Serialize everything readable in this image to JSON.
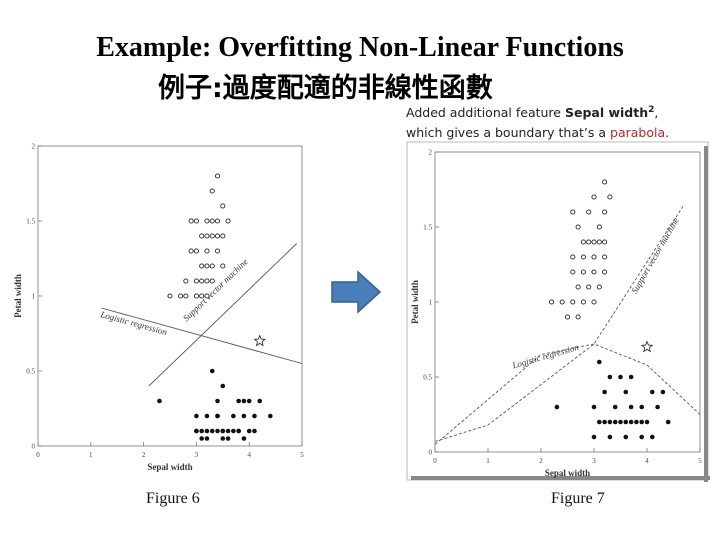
{
  "title": "Example: Overfitting Non-Linear Functions",
  "subtitle": "例子:過度配適的非線性函數",
  "annotation": {
    "line1_a": "Added additional feature ",
    "line1_b": "Sepal width",
    "line1_sup": "2",
    "line1_c": ",",
    "line2_a": "which gives a boundary that’s a ",
    "line2_b": "parabola",
    "line2_c": "."
  },
  "arrow_color": "#4a7ebb",
  "captions": {
    "left": "Figure 6",
    "right": "Figure 7"
  },
  "chart_data": [
    {
      "type": "scatter",
      "title": "",
      "xlabel": "Sepal width",
      "ylabel": "Petal width",
      "xlim": [
        0,
        5
      ],
      "ylim": [
        0,
        2
      ],
      "xticks": [
        "0",
        "1",
        "2",
        "3",
        "4",
        "5"
      ],
      "yticks": [
        "0",
        "0.5",
        "1",
        "1.5",
        "2"
      ],
      "series": [
        {
          "marker": "open-circle",
          "points": [
            [
              3.4,
              1.8
            ],
            [
              3.3,
              1.7
            ],
            [
              3.5,
              1.6
            ],
            [
              2.9,
              1.5
            ],
            [
              3.4,
              1.5
            ],
            [
              3.6,
              1.5
            ],
            [
              3.0,
              1.5
            ],
            [
              3.2,
              1.5
            ],
            [
              3.3,
              1.5
            ],
            [
              3.1,
              1.4
            ],
            [
              3.2,
              1.4
            ],
            [
              3.3,
              1.4
            ],
            [
              3.4,
              1.4
            ],
            [
              3.5,
              1.4
            ],
            [
              3.0,
              1.3
            ],
            [
              3.2,
              1.3
            ],
            [
              3.4,
              1.3
            ],
            [
              2.9,
              1.3
            ],
            [
              3.1,
              1.2
            ],
            [
              3.2,
              1.2
            ],
            [
              3.3,
              1.2
            ],
            [
              3.5,
              1.2
            ],
            [
              2.8,
              1.1
            ],
            [
              3.0,
              1.1
            ],
            [
              3.1,
              1.1
            ],
            [
              3.2,
              1.1
            ],
            [
              3.3,
              1.1
            ],
            [
              3.0,
              1.0
            ],
            [
              3.2,
              1.0
            ],
            [
              3.1,
              1.0
            ],
            [
              2.5,
              1.0
            ],
            [
              2.7,
              1.0
            ],
            [
              2.8,
              1.0
            ]
          ]
        },
        {
          "marker": "filled-circle",
          "points": [
            [
              3.3,
              0.5
            ],
            [
              3.5,
              0.4
            ],
            [
              3.4,
              0.3
            ],
            [
              3.8,
              0.3
            ],
            [
              3.9,
              0.3
            ],
            [
              4.0,
              0.3
            ],
            [
              4.2,
              0.3
            ],
            [
              2.3,
              0.3
            ],
            [
              3.0,
              0.2
            ],
            [
              3.2,
              0.2
            ],
            [
              3.4,
              0.2
            ],
            [
              3.7,
              0.2
            ],
            [
              4.1,
              0.2
            ],
            [
              4.4,
              0.2
            ],
            [
              3.9,
              0.2
            ],
            [
              3.4,
              0.2
            ],
            [
              3.2,
              0.1
            ],
            [
              3.1,
              0.1
            ],
            [
              3.0,
              0.1
            ],
            [
              3.3,
              0.1
            ],
            [
              3.4,
              0.1
            ],
            [
              3.5,
              0.1
            ],
            [
              3.6,
              0.1
            ],
            [
              3.7,
              0.1
            ],
            [
              3.8,
              0.1
            ],
            [
              4.0,
              0.1
            ],
            [
              3.5,
              0.1
            ],
            [
              3.8,
              0.1
            ],
            [
              3.0,
              0.1
            ],
            [
              4.1,
              0.1
            ],
            [
              3.1,
              0.05
            ],
            [
              3.2,
              0.05
            ],
            [
              3.9,
              0.05
            ],
            [
              3.6,
              0.05
            ],
            [
              3.5,
              0.05
            ]
          ]
        },
        {
          "marker": "star",
          "points": [
            [
              4.2,
              0.7
            ]
          ]
        }
      ],
      "lines": [
        {
          "name": "Support vector machine",
          "style": "solid",
          "points": [
            [
              2.1,
              0.4
            ],
            [
              4.9,
              1.35
            ]
          ]
        },
        {
          "name": "Logistic regression",
          "style": "solid",
          "points": [
            [
              1.2,
              0.92
            ],
            [
              5.0,
              0.55
            ]
          ]
        }
      ]
    },
    {
      "type": "scatter",
      "title": "",
      "xlabel": "Sepal width",
      "ylabel": "Petal width",
      "xlim": [
        0,
        5
      ],
      "ylim": [
        0,
        2
      ],
      "xticks": [
        "0",
        "1",
        "2",
        "3",
        "4",
        "5"
      ],
      "yticks": [
        "0",
        "0.5",
        "1",
        "1.5",
        "2"
      ],
      "series": [
        {
          "marker": "open-circle",
          "points": [
            [
              3.2,
              1.8
            ],
            [
              3.0,
              1.7
            ],
            [
              3.3,
              1.7
            ],
            [
              2.6,
              1.6
            ],
            [
              2.9,
              1.6
            ],
            [
              3.2,
              1.6
            ],
            [
              2.7,
              1.5
            ],
            [
              3.1,
              1.5
            ],
            [
              2.8,
              1.4
            ],
            [
              2.9,
              1.4
            ],
            [
              3.0,
              1.4
            ],
            [
              3.1,
              1.4
            ],
            [
              3.2,
              1.4
            ],
            [
              2.6,
              1.3
            ],
            [
              2.8,
              1.3
            ],
            [
              3.0,
              1.3
            ],
            [
              3.2,
              1.3
            ],
            [
              2.6,
              1.2
            ],
            [
              2.8,
              1.2
            ],
            [
              3.0,
              1.2
            ],
            [
              3.2,
              1.2
            ],
            [
              2.7,
              1.1
            ],
            [
              2.9,
              1.1
            ],
            [
              3.1,
              1.1
            ],
            [
              2.4,
              1.0
            ],
            [
              2.6,
              1.0
            ],
            [
              2.8,
              1.0
            ],
            [
              3.0,
              1.0
            ],
            [
              2.2,
              1.0
            ],
            [
              2.5,
              0.9
            ],
            [
              2.7,
              0.9
            ]
          ]
        },
        {
          "marker": "filled-circle",
          "points": [
            [
              3.1,
              0.6
            ],
            [
              3.3,
              0.5
            ],
            [
              3.5,
              0.5
            ],
            [
              3.7,
              0.5
            ],
            [
              3.2,
              0.4
            ],
            [
              3.6,
              0.4
            ],
            [
              4.1,
              0.4
            ],
            [
              4.3,
              0.4
            ],
            [
              2.3,
              0.3
            ],
            [
              3.0,
              0.3
            ],
            [
              3.4,
              0.3
            ],
            [
              3.7,
              0.3
            ],
            [
              3.9,
              0.3
            ],
            [
              4.2,
              0.3
            ],
            [
              3.1,
              0.2
            ],
            [
              3.2,
              0.2
            ],
            [
              3.3,
              0.2
            ],
            [
              3.4,
              0.2
            ],
            [
              3.5,
              0.2
            ],
            [
              3.6,
              0.2
            ],
            [
              3.7,
              0.2
            ],
            [
              3.8,
              0.2
            ],
            [
              3.9,
              0.2
            ],
            [
              4.0,
              0.2
            ],
            [
              4.4,
              0.2
            ],
            [
              3.0,
              0.1
            ],
            [
              3.3,
              0.1
            ],
            [
              3.6,
              0.1
            ],
            [
              3.9,
              0.1
            ],
            [
              4.1,
              0.1
            ]
          ]
        },
        {
          "marker": "star",
          "points": [
            [
              4.0,
              0.7
            ]
          ]
        }
      ],
      "lines": [
        {
          "name": "Support vector machine",
          "style": "dashed",
          "points": [
            [
              0,
              0.07
            ],
            [
              1,
              0.18
            ],
            [
              2,
              0.45
            ],
            [
              3,
              0.72
            ],
            [
              4.7,
              1.65
            ]
          ]
        },
        {
          "name": "Logistic regression",
          "style": "dashed",
          "points": [
            [
              0,
              0.05
            ],
            [
              1,
              0.35
            ],
            [
              2,
              0.65
            ],
            [
              3,
              0.72
            ],
            [
              4,
              0.58
            ],
            [
              5,
              0.25
            ]
          ]
        }
      ]
    }
  ]
}
